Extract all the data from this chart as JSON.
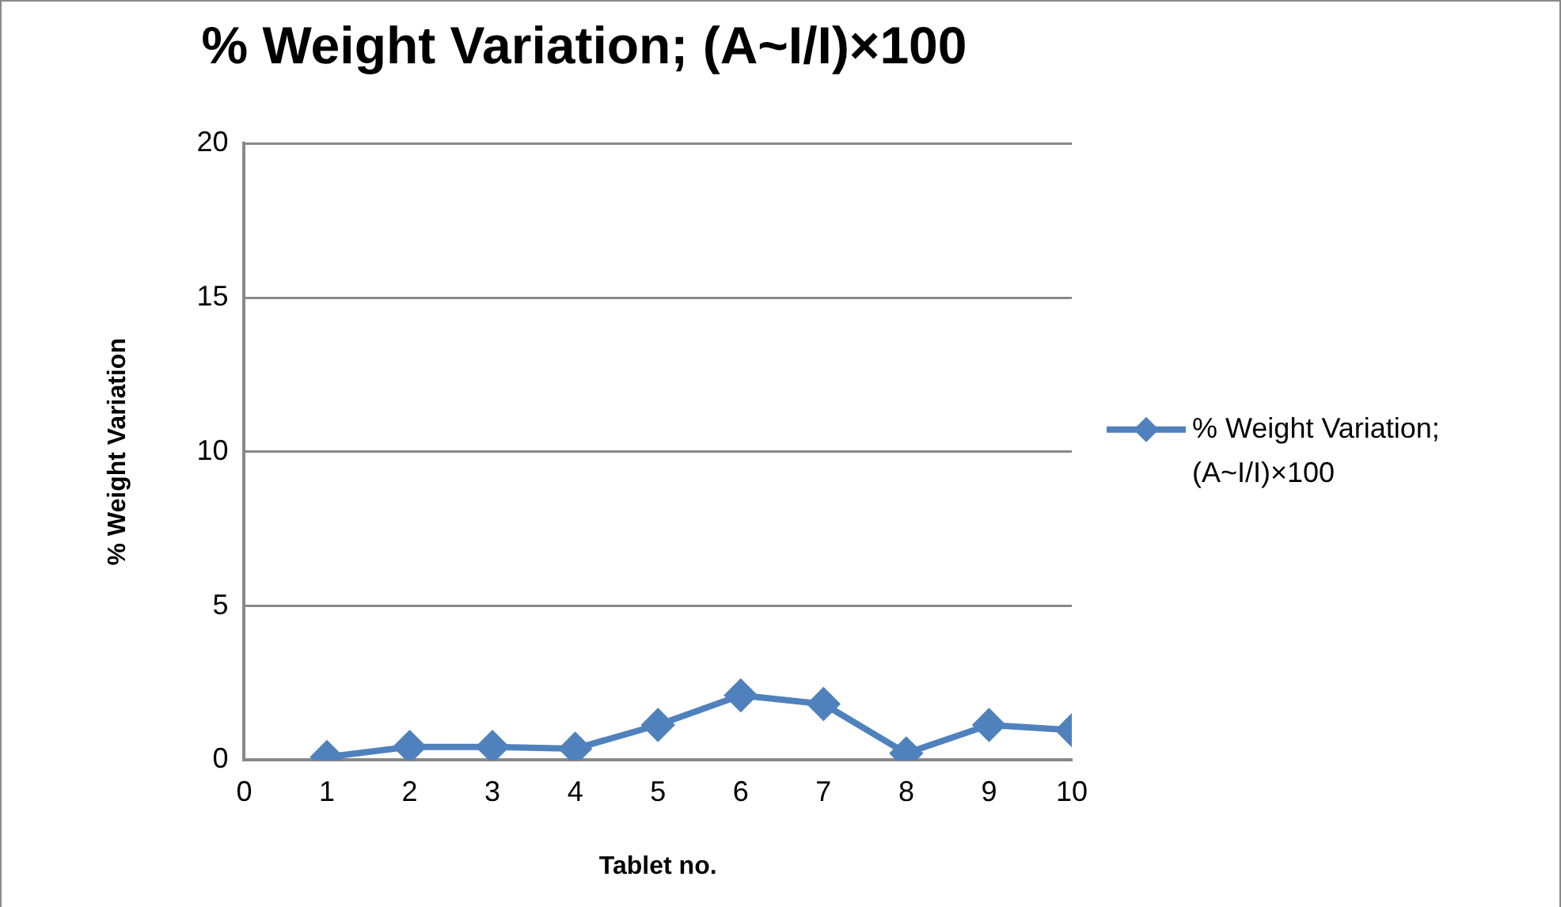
{
  "chart_data": {
    "type": "line",
    "title": "% Weight Variation; (A~I/I)×100",
    "xlabel": "Tablet no.",
    "ylabel": "% Weight Variation",
    "x": [
      1,
      2,
      3,
      4,
      5,
      6,
      7,
      8,
      9,
      10
    ],
    "series": [
      {
        "name": "% Weight Variation; (A~I/I)×100",
        "color": "#4f81bd",
        "values": [
          0.1,
          0.43,
          0.43,
          0.37,
          1.14,
          2.1,
          1.82,
          0.22,
          1.14,
          0.97
        ]
      }
    ],
    "xlim": [
      0,
      10
    ],
    "xticks": [
      0,
      1,
      2,
      3,
      4,
      5,
      6,
      7,
      8,
      9,
      10
    ],
    "ylim": [
      0,
      20
    ],
    "yticks": [
      0,
      5,
      10,
      15,
      20
    ],
    "grid": "y",
    "legend": "right",
    "marker": "diamond",
    "line_style": "solid"
  }
}
